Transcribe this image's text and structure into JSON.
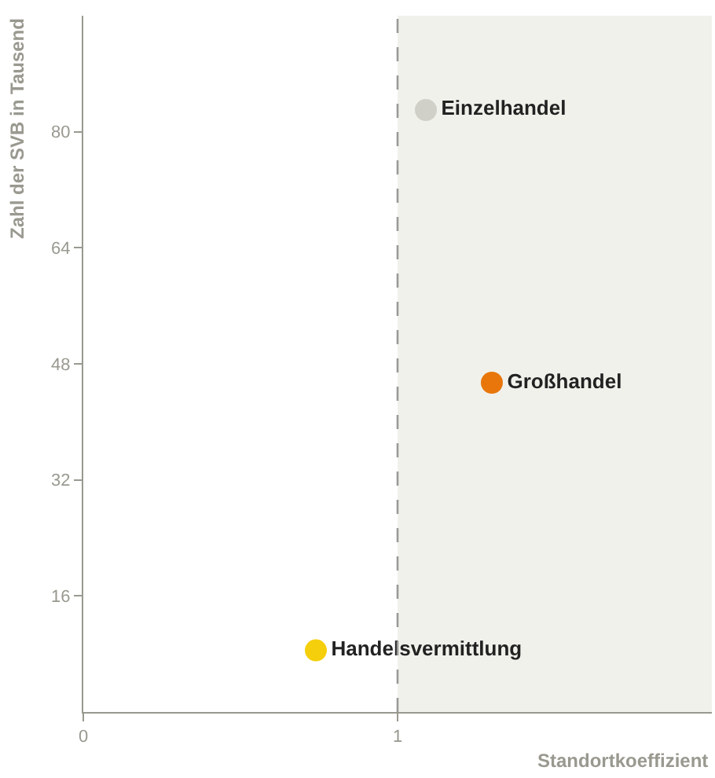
{
  "chart_data": {
    "type": "scatter",
    "xlabel": "Standortkoeffizient",
    "ylabel": "Zahl der SVB in Tausend",
    "xlim": [
      0,
      2
    ],
    "ylim": [
      0,
      96
    ],
    "xticks": [
      0,
      1
    ],
    "yticks": [
      16,
      32,
      48,
      64,
      80
    ],
    "grid": false,
    "legend": false,
    "marker": "circle",
    "series": [
      {
        "name": "Einzelhandel",
        "color": "#d0d0c8",
        "x": [
          1.09
        ],
        "values": [
          83
        ]
      },
      {
        "name": "Großhandel",
        "color": "#e8760a",
        "x": [
          1.3
        ],
        "values": [
          45.4
        ]
      },
      {
        "name": "Handelsvermittlung",
        "color": "#f5cf0c",
        "x": [
          0.74
        ],
        "values": [
          8.5
        ]
      }
    ],
    "ref_lines": [
      {
        "axis": "x",
        "value": 1,
        "color": "#999999",
        "line_style": "dashed"
      }
    ],
    "bands": [
      {
        "axis": "x",
        "from": 1,
        "to": 2,
        "color": "#f1f1ec"
      }
    ]
  }
}
